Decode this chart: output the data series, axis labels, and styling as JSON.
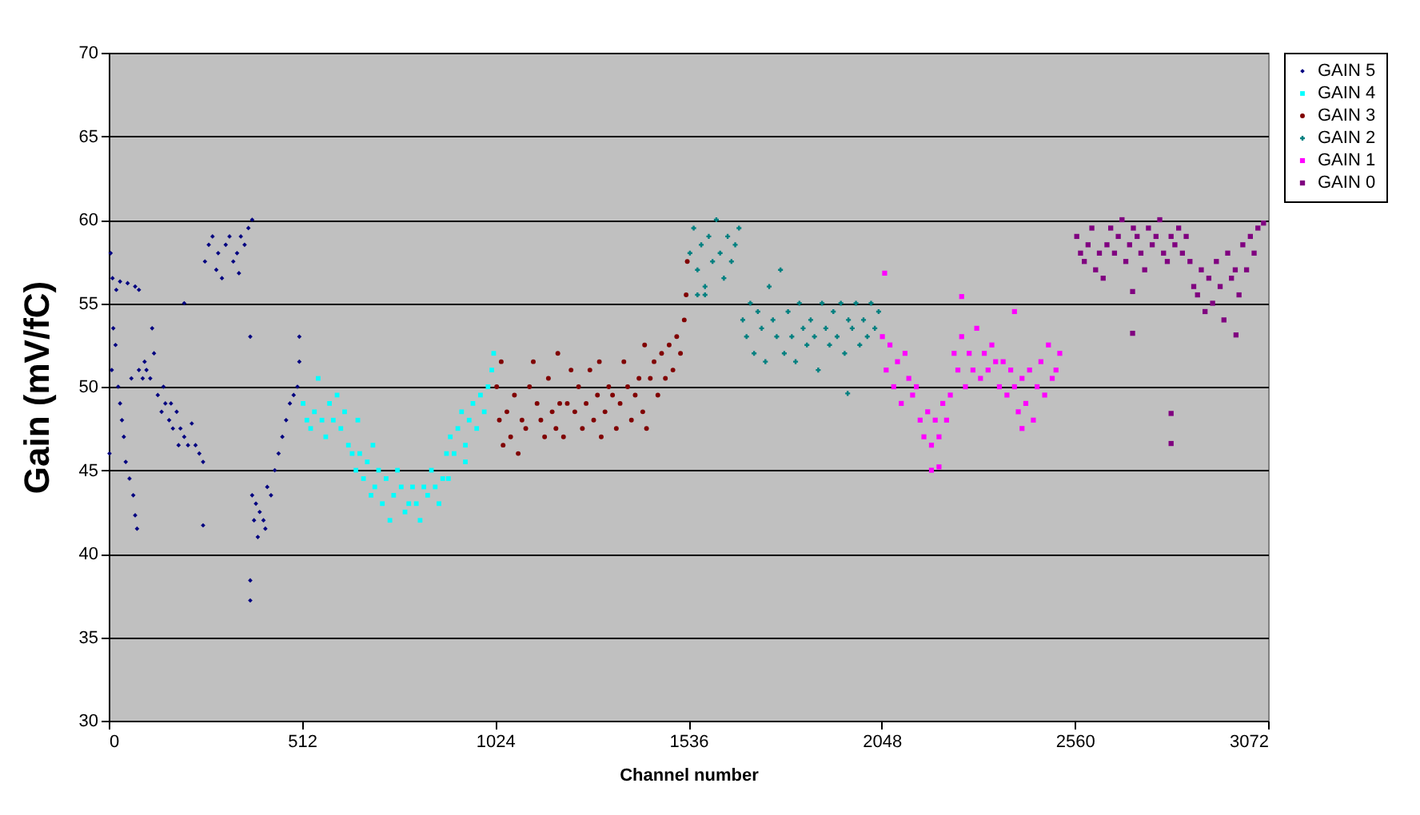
{
  "chart_data": {
    "type": "scatter",
    "xlabel": "Channel number",
    "ylabel": "Gain  (mV/fC)",
    "xlim": [
      0,
      3072
    ],
    "xticks": [
      0,
      512,
      1024,
      1536,
      2048,
      2560,
      3072
    ],
    "ylim": [
      30,
      70
    ],
    "yticks": [
      30,
      35,
      40,
      45,
      50,
      55,
      60,
      65,
      70
    ],
    "grid": "y",
    "legend": "right",
    "series": [
      {
        "name": "GAIN 5",
        "color": "#000080",
        "marker": "diamond",
        "x": [
          5,
          10,
          20,
          30,
          50,
          70,
          80,
          2,
          8,
          12,
          18,
          25,
          30,
          35,
          40,
          45,
          55,
          65,
          70,
          75,
          60,
          80,
          90,
          100,
          110,
          120,
          130,
          140,
          150,
          160,
          170,
          180,
          190,
          200,
          200,
          210,
          220,
          230,
          240,
          250,
          250,
          115,
          95,
          145,
          165,
          185,
          255,
          265,
          275,
          285,
          290,
          300,
          310,
          320,
          330,
          340,
          350,
          360,
          370,
          380,
          345,
          375,
          375,
          375,
          380,
          385,
          390,
          395,
          400,
          410,
          420,
          430,
          440,
          450,
          460,
          470,
          480,
          490,
          500,
          505,
          505,
          415
        ],
        "values": [
          58,
          56.5,
          55.8,
          56.3,
          56.2,
          56,
          55.8,
          46,
          51,
          53.5,
          52.5,
          50,
          49,
          48,
          47,
          45.5,
          44.5,
          43.5,
          42.3,
          41.5,
          50.5,
          51,
          50.5,
          51,
          50.5,
          52,
          49.5,
          48.5,
          49,
          48,
          47.5,
          48.5,
          47.5,
          55,
          47,
          46.5,
          47.8,
          46.5,
          46,
          41.7,
          45.5,
          53.5,
          51.5,
          50,
          49,
          46.5,
          57.5,
          58.5,
          59,
          57,
          58,
          56.5,
          58.5,
          59,
          57.5,
          58,
          59,
          58.5,
          59.5,
          60,
          56.8,
          53,
          38.4,
          37.2,
          43.5,
          42,
          43,
          41,
          42.5,
          42,
          44,
          43.5,
          45,
          46,
          47,
          48,
          49,
          49.5,
          50,
          53,
          51.5,
          41.5
        ]
      },
      {
        "name": "GAIN 4",
        "color": "#00ffff",
        "marker": "square",
        "x": [
          515,
          525,
          535,
          545,
          555,
          565,
          575,
          585,
          595,
          605,
          615,
          625,
          635,
          645,
          655,
          665,
          675,
          685,
          695,
          705,
          715,
          725,
          735,
          745,
          755,
          765,
          775,
          785,
          795,
          805,
          815,
          825,
          835,
          845,
          855,
          865,
          875,
          885,
          895,
          905,
          915,
          925,
          935,
          945,
          955,
          965,
          975,
          985,
          995,
          1005,
          1015,
          1020,
          660,
          700,
          900,
          945
        ],
        "values": [
          49,
          48,
          47.5,
          48.5,
          50.5,
          48,
          47,
          49,
          48,
          49.5,
          47.5,
          48.5,
          46.5,
          46,
          45,
          46,
          44.5,
          45.5,
          43.5,
          44,
          45,
          43,
          44.5,
          42,
          43.5,
          45,
          44,
          42.5,
          43,
          44,
          43,
          42,
          44,
          43.5,
          45,
          44,
          43,
          44.5,
          46,
          47,
          46,
          47.5,
          48.5,
          46.5,
          48,
          49,
          47.5,
          49.5,
          48.5,
          50,
          51,
          52,
          48,
          46.5,
          44.5,
          45.5
        ]
      },
      {
        "name": "GAIN 3",
        "color": "#800000",
        "marker": "circle",
        "x": [
          1028,
          1035,
          1045,
          1055,
          1065,
          1075,
          1085,
          1095,
          1105,
          1115,
          1125,
          1135,
          1145,
          1155,
          1165,
          1175,
          1185,
          1195,
          1205,
          1215,
          1225,
          1235,
          1245,
          1255,
          1265,
          1275,
          1285,
          1295,
          1305,
          1315,
          1325,
          1335,
          1345,
          1355,
          1365,
          1375,
          1385,
          1395,
          1405,
          1415,
          1425,
          1435,
          1445,
          1455,
          1465,
          1475,
          1485,
          1495,
          1505,
          1515,
          1525,
          1530,
          1533,
          1040,
          1190,
          1300,
          1420
        ],
        "values": [
          50,
          48,
          46.5,
          48.5,
          47,
          49.5,
          46,
          48,
          47.5,
          50,
          51.5,
          49,
          48,
          47,
          50.5,
          48.5,
          47.5,
          49,
          47,
          49,
          51,
          48.5,
          50,
          47.5,
          49,
          51,
          48,
          49.5,
          47,
          48.5,
          50,
          49.5,
          47.5,
          49,
          51.5,
          50,
          48,
          49.5,
          50.5,
          48.5,
          47.5,
          50.5,
          51.5,
          49.5,
          52,
          50.5,
          52.5,
          51,
          53,
          52,
          54,
          55.5,
          57.5,
          51.5,
          52,
          51.5,
          52.5
        ]
      },
      {
        "name": "GAIN 2",
        "color": "#008080",
        "marker": "cross",
        "x": [
          1540,
          1550,
          1560,
          1570,
          1580,
          1590,
          1600,
          1610,
          1620,
          1630,
          1640,
          1650,
          1660,
          1670,
          1560,
          1580,
          1680,
          1690,
          1700,
          1710,
          1720,
          1730,
          1740,
          1750,
          1760,
          1770,
          1780,
          1790,
          1800,
          1810,
          1820,
          1830,
          1840,
          1850,
          1860,
          1870,
          1880,
          1890,
          1900,
          1910,
          1920,
          1930,
          1940,
          1950,
          1960,
          1970,
          1980,
          1990,
          2000,
          2010,
          2020,
          2030,
          2040,
          1958
        ],
        "values": [
          58,
          59.5,
          57,
          58.5,
          56,
          59,
          57.5,
          60,
          58,
          56.5,
          59,
          57.5,
          58.5,
          59.5,
          55.5,
          55.5,
          54,
          53,
          55,
          52,
          54.5,
          53.5,
          51.5,
          56,
          54,
          53,
          57,
          52,
          54.5,
          53,
          51.5,
          55,
          53.5,
          52.5,
          54,
          53,
          51,
          55,
          53.5,
          52.5,
          54.5,
          53,
          55,
          52,
          54,
          53.5,
          55,
          52.5,
          54,
          53,
          55,
          53.5,
          54.5,
          49.6
        ]
      },
      {
        "name": "GAIN 1",
        "color": "#ff00ff",
        "marker": "square",
        "x": [
          2050,
          2060,
          2070,
          2080,
          2090,
          2100,
          2110,
          2120,
          2130,
          2140,
          2150,
          2160,
          2170,
          2180,
          2190,
          2200,
          2210,
          2220,
          2230,
          2180,
          2200,
          2240,
          2250,
          2260,
          2270,
          2280,
          2290,
          2300,
          2310,
          2320,
          2330,
          2340,
          2350,
          2360,
          2370,
          2380,
          2390,
          2400,
          2410,
          2420,
          2430,
          2440,
          2450,
          2460,
          2470,
          2480,
          2490,
          2500,
          2510,
          2520,
          2056,
          2260,
          2400,
          2420
        ],
        "values": [
          53,
          51,
          52.5,
          50,
          51.5,
          49,
          52,
          50.5,
          49.5,
          50,
          48,
          47,
          48.5,
          46.5,
          48,
          47,
          49,
          48,
          49.5,
          45,
          45.2,
          52,
          51,
          53,
          50,
          52,
          51,
          53.5,
          50.5,
          52,
          51,
          52.5,
          51.5,
          50,
          51.5,
          49.5,
          51,
          50,
          48.5,
          50.5,
          49,
          51,
          48,
          50,
          51.5,
          49.5,
          52.5,
          50.5,
          51,
          52,
          56.8,
          55.4,
          54.5,
          47.5
        ]
      },
      {
        "name": "GAIN 0",
        "color": "#800080",
        "marker": "square",
        "x": [
          2565,
          2575,
          2585,
          2595,
          2605,
          2615,
          2625,
          2635,
          2645,
          2655,
          2665,
          2675,
          2685,
          2695,
          2705,
          2715,
          2725,
          2735,
          2745,
          2755,
          2765,
          2775,
          2785,
          2795,
          2805,
          2815,
          2825,
          2835,
          2845,
          2855,
          2865,
          2875,
          2885,
          2895,
          2905,
          2915,
          2925,
          2935,
          2945,
          2955,
          2965,
          2975,
          2985,
          2995,
          3005,
          3015,
          3025,
          3035,
          3045,
          3060,
          2713,
          2713,
          2815,
          2815,
          2987
        ],
        "values": [
          59,
          58,
          57.5,
          58.5,
          59.5,
          57,
          58,
          56.5,
          58.5,
          59.5,
          58,
          59,
          60,
          57.5,
          58.5,
          59.5,
          59,
          58,
          57,
          59.5,
          58.5,
          59,
          60,
          58,
          57.5,
          59,
          58.5,
          59.5,
          58,
          59,
          57.5,
          56,
          55.5,
          57,
          54.5,
          56.5,
          55,
          57.5,
          56,
          54,
          58,
          56.5,
          57,
          55.5,
          58.5,
          57,
          59,
          58,
          59.5,
          59.8,
          55.7,
          53.2,
          48.4,
          46.6,
          53.1
        ]
      }
    ]
  }
}
